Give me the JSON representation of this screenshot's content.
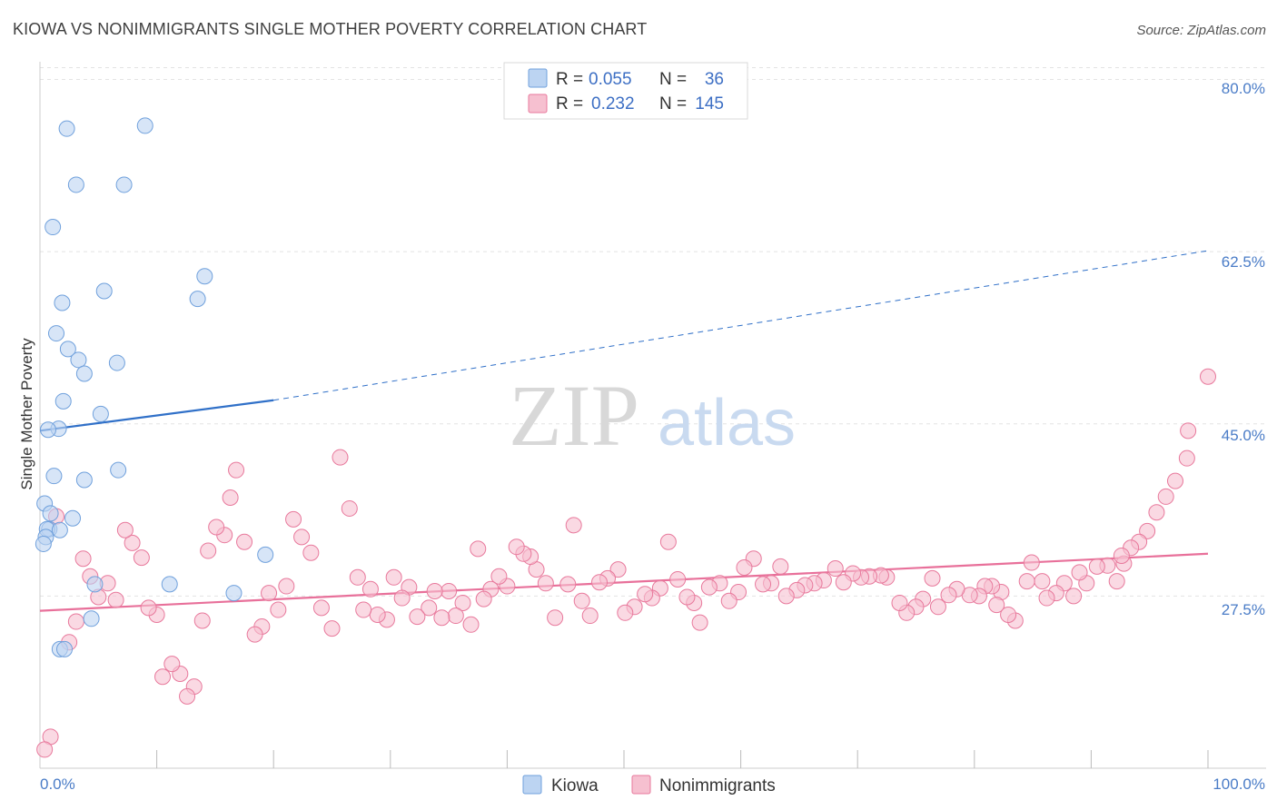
{
  "title": "KIOWA VS NONIMMIGRANTS SINGLE MOTHER POVERTY CORRELATION CHART",
  "source": "Source: ZipAtlas.com",
  "colors": {
    "kiowa": "#6fa0dc",
    "kiowa_fill": "#bcd4f2",
    "nonimmigrants": "#e8799c",
    "nonimmigrants_fill": "#f6c0d0",
    "kiowa_line": "#3070c8",
    "nonimmigrants_line": "#e8709a",
    "tick_text": "#4a7cc7"
  },
  "legend": {
    "rows": [
      {
        "r_label": "R =",
        "r_value": "0.055",
        "n_label": "N =",
        "n_value": "36"
      },
      {
        "r_label": "R =",
        "r_value": "0.232",
        "n_label": "N =",
        "n_value": "145"
      }
    ]
  },
  "chart_data": {
    "type": "scatter",
    "xlabel": "",
    "ylabel": "Single Mother Poverty",
    "x_ticks": [
      "0.0%",
      "100.0%"
    ],
    "y_ticks": [
      "27.5%",
      "45.0%",
      "62.5%",
      "80.0%"
    ],
    "xlim": [
      0,
      100
    ],
    "ylim": [
      10,
      81.8
    ],
    "grid": true,
    "legend_position": "top-center",
    "series": [
      {
        "name": "Kiowa",
        "r": 0.055,
        "n": 36,
        "trend": {
          "x0": 0,
          "y0": 44.3,
          "x1": 20,
          "y1": 47.4,
          "x_end": 100,
          "y_end": 62.6
        },
        "points": [
          [
            2.3,
            75.0
          ],
          [
            9.0,
            75.3
          ],
          [
            3.1,
            69.3
          ],
          [
            7.2,
            69.3
          ],
          [
            1.1,
            65.0
          ],
          [
            14.1,
            60.0
          ],
          [
            5.5,
            58.5
          ],
          [
            1.9,
            57.3
          ],
          [
            13.5,
            57.7
          ],
          [
            1.4,
            54.2
          ],
          [
            2.4,
            52.6
          ],
          [
            3.3,
            51.5
          ],
          [
            6.6,
            51.2
          ],
          [
            3.8,
            50.1
          ],
          [
            2.0,
            47.3
          ],
          [
            5.2,
            46.0
          ],
          [
            1.6,
            44.5
          ],
          [
            0.7,
            44.4
          ],
          [
            6.7,
            40.3
          ],
          [
            1.2,
            39.7
          ],
          [
            3.8,
            39.3
          ],
          [
            0.4,
            36.9
          ],
          [
            0.9,
            35.9
          ],
          [
            2.8,
            35.4
          ],
          [
            0.8,
            34.3
          ],
          [
            0.6,
            34.3
          ],
          [
            1.7,
            34.2
          ],
          [
            0.5,
            33.5
          ],
          [
            0.3,
            32.8
          ],
          [
            19.3,
            31.7
          ],
          [
            4.7,
            28.7
          ],
          [
            11.1,
            28.7
          ],
          [
            16.6,
            27.8
          ],
          [
            4.4,
            25.2
          ],
          [
            1.7,
            22.1
          ],
          [
            2.1,
            22.1
          ]
        ]
      },
      {
        "name": "Nonimmigrants",
        "r": 0.232,
        "n": 145,
        "trend": {
          "x0": 0,
          "y0": 26.0,
          "x1": 100,
          "y1": 31.8
        },
        "points": [
          [
            100.0,
            49.8
          ],
          [
            98.3,
            44.3
          ],
          [
            98.2,
            41.5
          ],
          [
            97.2,
            39.2
          ],
          [
            96.4,
            37.6
          ],
          [
            95.6,
            36.0
          ],
          [
            94.8,
            34.1
          ],
          [
            94.1,
            33.0
          ],
          [
            93.4,
            32.4
          ],
          [
            92.8,
            30.8
          ],
          [
            92.6,
            31.6
          ],
          [
            92.2,
            29.0
          ],
          [
            91.4,
            30.6
          ],
          [
            90.5,
            30.5
          ],
          [
            89.6,
            28.8
          ],
          [
            89.0,
            29.9
          ],
          [
            88.5,
            27.5
          ],
          [
            87.7,
            28.8
          ],
          [
            87.0,
            27.8
          ],
          [
            86.2,
            27.3
          ],
          [
            85.8,
            29.0
          ],
          [
            84.9,
            30.9
          ],
          [
            84.5,
            29.0
          ],
          [
            83.5,
            25.0
          ],
          [
            82.9,
            25.6
          ],
          [
            82.3,
            27.9
          ],
          [
            81.9,
            26.6
          ],
          [
            81.5,
            28.5
          ],
          [
            80.9,
            28.5
          ],
          [
            80.4,
            27.5
          ],
          [
            79.6,
            27.6
          ],
          [
            78.5,
            28.2
          ],
          [
            77.8,
            27.6
          ],
          [
            76.9,
            26.4
          ],
          [
            76.4,
            29.3
          ],
          [
            75.6,
            27.2
          ],
          [
            75.0,
            26.4
          ],
          [
            74.2,
            25.8
          ],
          [
            73.6,
            26.8
          ],
          [
            72.5,
            29.4
          ],
          [
            72.0,
            29.6
          ],
          [
            71.0,
            29.5
          ],
          [
            70.3,
            29.4
          ],
          [
            69.6,
            29.8
          ],
          [
            68.8,
            28.9
          ],
          [
            68.1,
            30.3
          ],
          [
            67.1,
            29.1
          ],
          [
            66.3,
            28.8
          ],
          [
            65.5,
            28.6
          ],
          [
            64.8,
            28.1
          ],
          [
            63.9,
            27.5
          ],
          [
            63.4,
            30.5
          ],
          [
            62.6,
            28.8
          ],
          [
            61.9,
            28.7
          ],
          [
            61.1,
            31.3
          ],
          [
            60.3,
            30.4
          ],
          [
            59.8,
            27.9
          ],
          [
            59.0,
            27.0
          ],
          [
            58.2,
            28.8
          ],
          [
            57.3,
            28.4
          ],
          [
            56.5,
            24.8
          ],
          [
            56.0,
            26.8
          ],
          [
            55.4,
            27.4
          ],
          [
            54.6,
            29.2
          ],
          [
            53.8,
            33.0
          ],
          [
            53.1,
            28.3
          ],
          [
            52.4,
            27.3
          ],
          [
            51.8,
            27.7
          ],
          [
            50.9,
            26.4
          ],
          [
            50.1,
            25.8
          ],
          [
            49.5,
            30.2
          ],
          [
            48.6,
            29.3
          ],
          [
            47.9,
            28.9
          ],
          [
            47.1,
            25.5
          ],
          [
            46.4,
            27.0
          ],
          [
            45.7,
            34.7
          ],
          [
            45.2,
            28.7
          ],
          [
            44.1,
            25.3
          ],
          [
            43.3,
            28.8
          ],
          [
            42.5,
            30.2
          ],
          [
            42.0,
            31.5
          ],
          [
            41.4,
            31.8
          ],
          [
            40.8,
            32.5
          ],
          [
            40.0,
            28.5
          ],
          [
            39.3,
            29.5
          ],
          [
            38.6,
            28.2
          ],
          [
            38.0,
            27.2
          ],
          [
            37.5,
            32.3
          ],
          [
            36.9,
            24.6
          ],
          [
            36.2,
            26.8
          ],
          [
            35.6,
            25.5
          ],
          [
            35.0,
            28.0
          ],
          [
            34.4,
            25.3
          ],
          [
            33.8,
            28.0
          ],
          [
            33.3,
            26.3
          ],
          [
            32.3,
            25.4
          ],
          [
            31.6,
            28.4
          ],
          [
            31.0,
            27.3
          ],
          [
            30.3,
            29.4
          ],
          [
            29.7,
            25.1
          ],
          [
            28.9,
            25.6
          ],
          [
            28.3,
            28.2
          ],
          [
            27.7,
            26.1
          ],
          [
            27.2,
            29.4
          ],
          [
            26.5,
            36.4
          ],
          [
            25.7,
            41.6
          ],
          [
            25.0,
            24.2
          ],
          [
            24.1,
            26.3
          ],
          [
            23.2,
            31.9
          ],
          [
            22.4,
            33.5
          ],
          [
            21.7,
            35.3
          ],
          [
            21.1,
            28.5
          ],
          [
            20.4,
            26.1
          ],
          [
            19.6,
            27.8
          ],
          [
            19.0,
            24.4
          ],
          [
            18.4,
            23.6
          ],
          [
            17.5,
            33.0
          ],
          [
            16.8,
            40.3
          ],
          [
            16.3,
            37.5
          ],
          [
            15.8,
            33.7
          ],
          [
            15.1,
            34.5
          ],
          [
            14.4,
            32.1
          ],
          [
            13.9,
            25.0
          ],
          [
            13.2,
            18.3
          ],
          [
            12.6,
            17.3
          ],
          [
            12.0,
            19.6
          ],
          [
            11.3,
            20.6
          ],
          [
            10.5,
            19.3
          ],
          [
            10.0,
            25.6
          ],
          [
            9.3,
            26.3
          ],
          [
            8.7,
            31.4
          ],
          [
            7.9,
            32.9
          ],
          [
            7.3,
            34.2
          ],
          [
            6.5,
            27.1
          ],
          [
            5.8,
            28.8
          ],
          [
            5.0,
            27.4
          ],
          [
            4.3,
            29.5
          ],
          [
            3.7,
            31.3
          ],
          [
            3.1,
            24.9
          ],
          [
            2.5,
            22.8
          ],
          [
            1.4,
            35.6
          ],
          [
            0.9,
            13.2
          ],
          [
            0.4,
            11.9
          ]
        ]
      }
    ]
  },
  "bottom_legend": {
    "items": [
      {
        "label": "Kiowa"
      },
      {
        "label": "Nonimmigrants"
      }
    ]
  },
  "watermark": {
    "zip": "ZIP",
    "atlas": "atlas"
  }
}
